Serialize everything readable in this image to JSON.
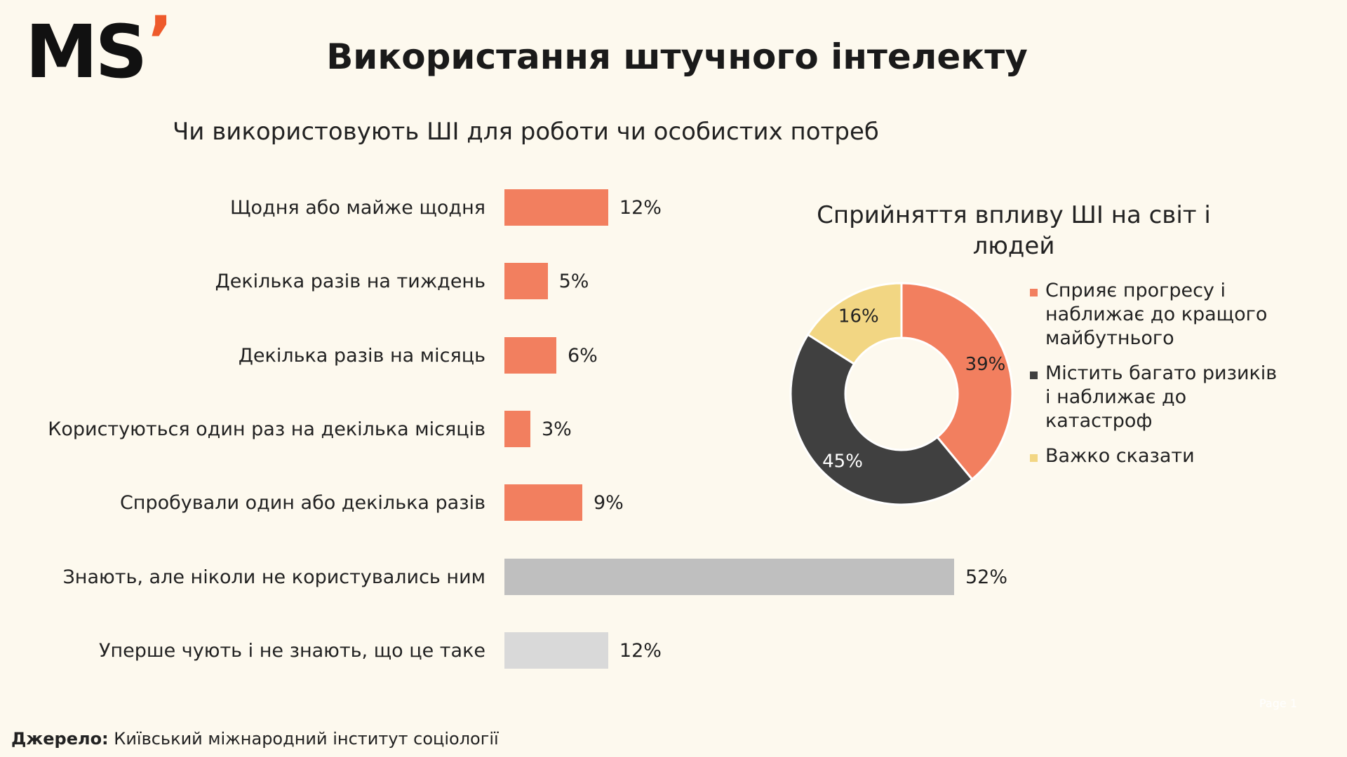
{
  "logo": {
    "text": "MS",
    "tick": "’"
  },
  "title": "Використання штучного інтелекту",
  "bar_subtitle": "Чи використовують ШІ для роботи чи особистих потреб",
  "donut_title": "Сприйняття впливу ШІ на світ і людей",
  "source": {
    "label": "Джерело:",
    "text": " Київський міжнародний інститут соціології"
  },
  "page_mark": "Page 1",
  "chart_data": [
    {
      "type": "bar",
      "orientation": "horizontal",
      "title": "Чи використовують ШІ для роботи чи особистих потреб",
      "categories": [
        "Щодня або майже щодня",
        "Декілька разів на тиждень",
        "Декілька разів на місяць",
        "Користуються один раз на декілька місяців",
        "Спробували один або декілька разів",
        "Знають, але ніколи  не користувались ним",
        "Уперше чують і не знають, що це таке"
      ],
      "values": [
        12,
        5,
        6,
        3,
        9,
        52,
        12
      ],
      "value_labels": [
        "12%",
        "5%",
        "6%",
        "3%",
        "9%",
        "52%",
        "12%"
      ],
      "colors": [
        "#f27f5f",
        "#f27f5f",
        "#f27f5f",
        "#f27f5f",
        "#f27f5f",
        "#bfbfbf",
        "#d9d9d9"
      ],
      "unit": "%"
    },
    {
      "type": "pie",
      "style": "donut",
      "title": "Сприйняття впливу ШІ на світ і людей",
      "slices": [
        {
          "label": "Сприяє прогресу і наближає до кращого майбутнього",
          "value": 39,
          "value_label": "39%",
          "color": "#f27f5f"
        },
        {
          "label": "Містить багато ризиків і наближає до катастроф",
          "value": 45,
          "value_label": "45%",
          "color": "#404040"
        },
        {
          "label": "Важко сказати",
          "value": 16,
          "value_label": "16%",
          "color": "#f2d683"
        }
      ],
      "legend_position": "right"
    }
  ]
}
